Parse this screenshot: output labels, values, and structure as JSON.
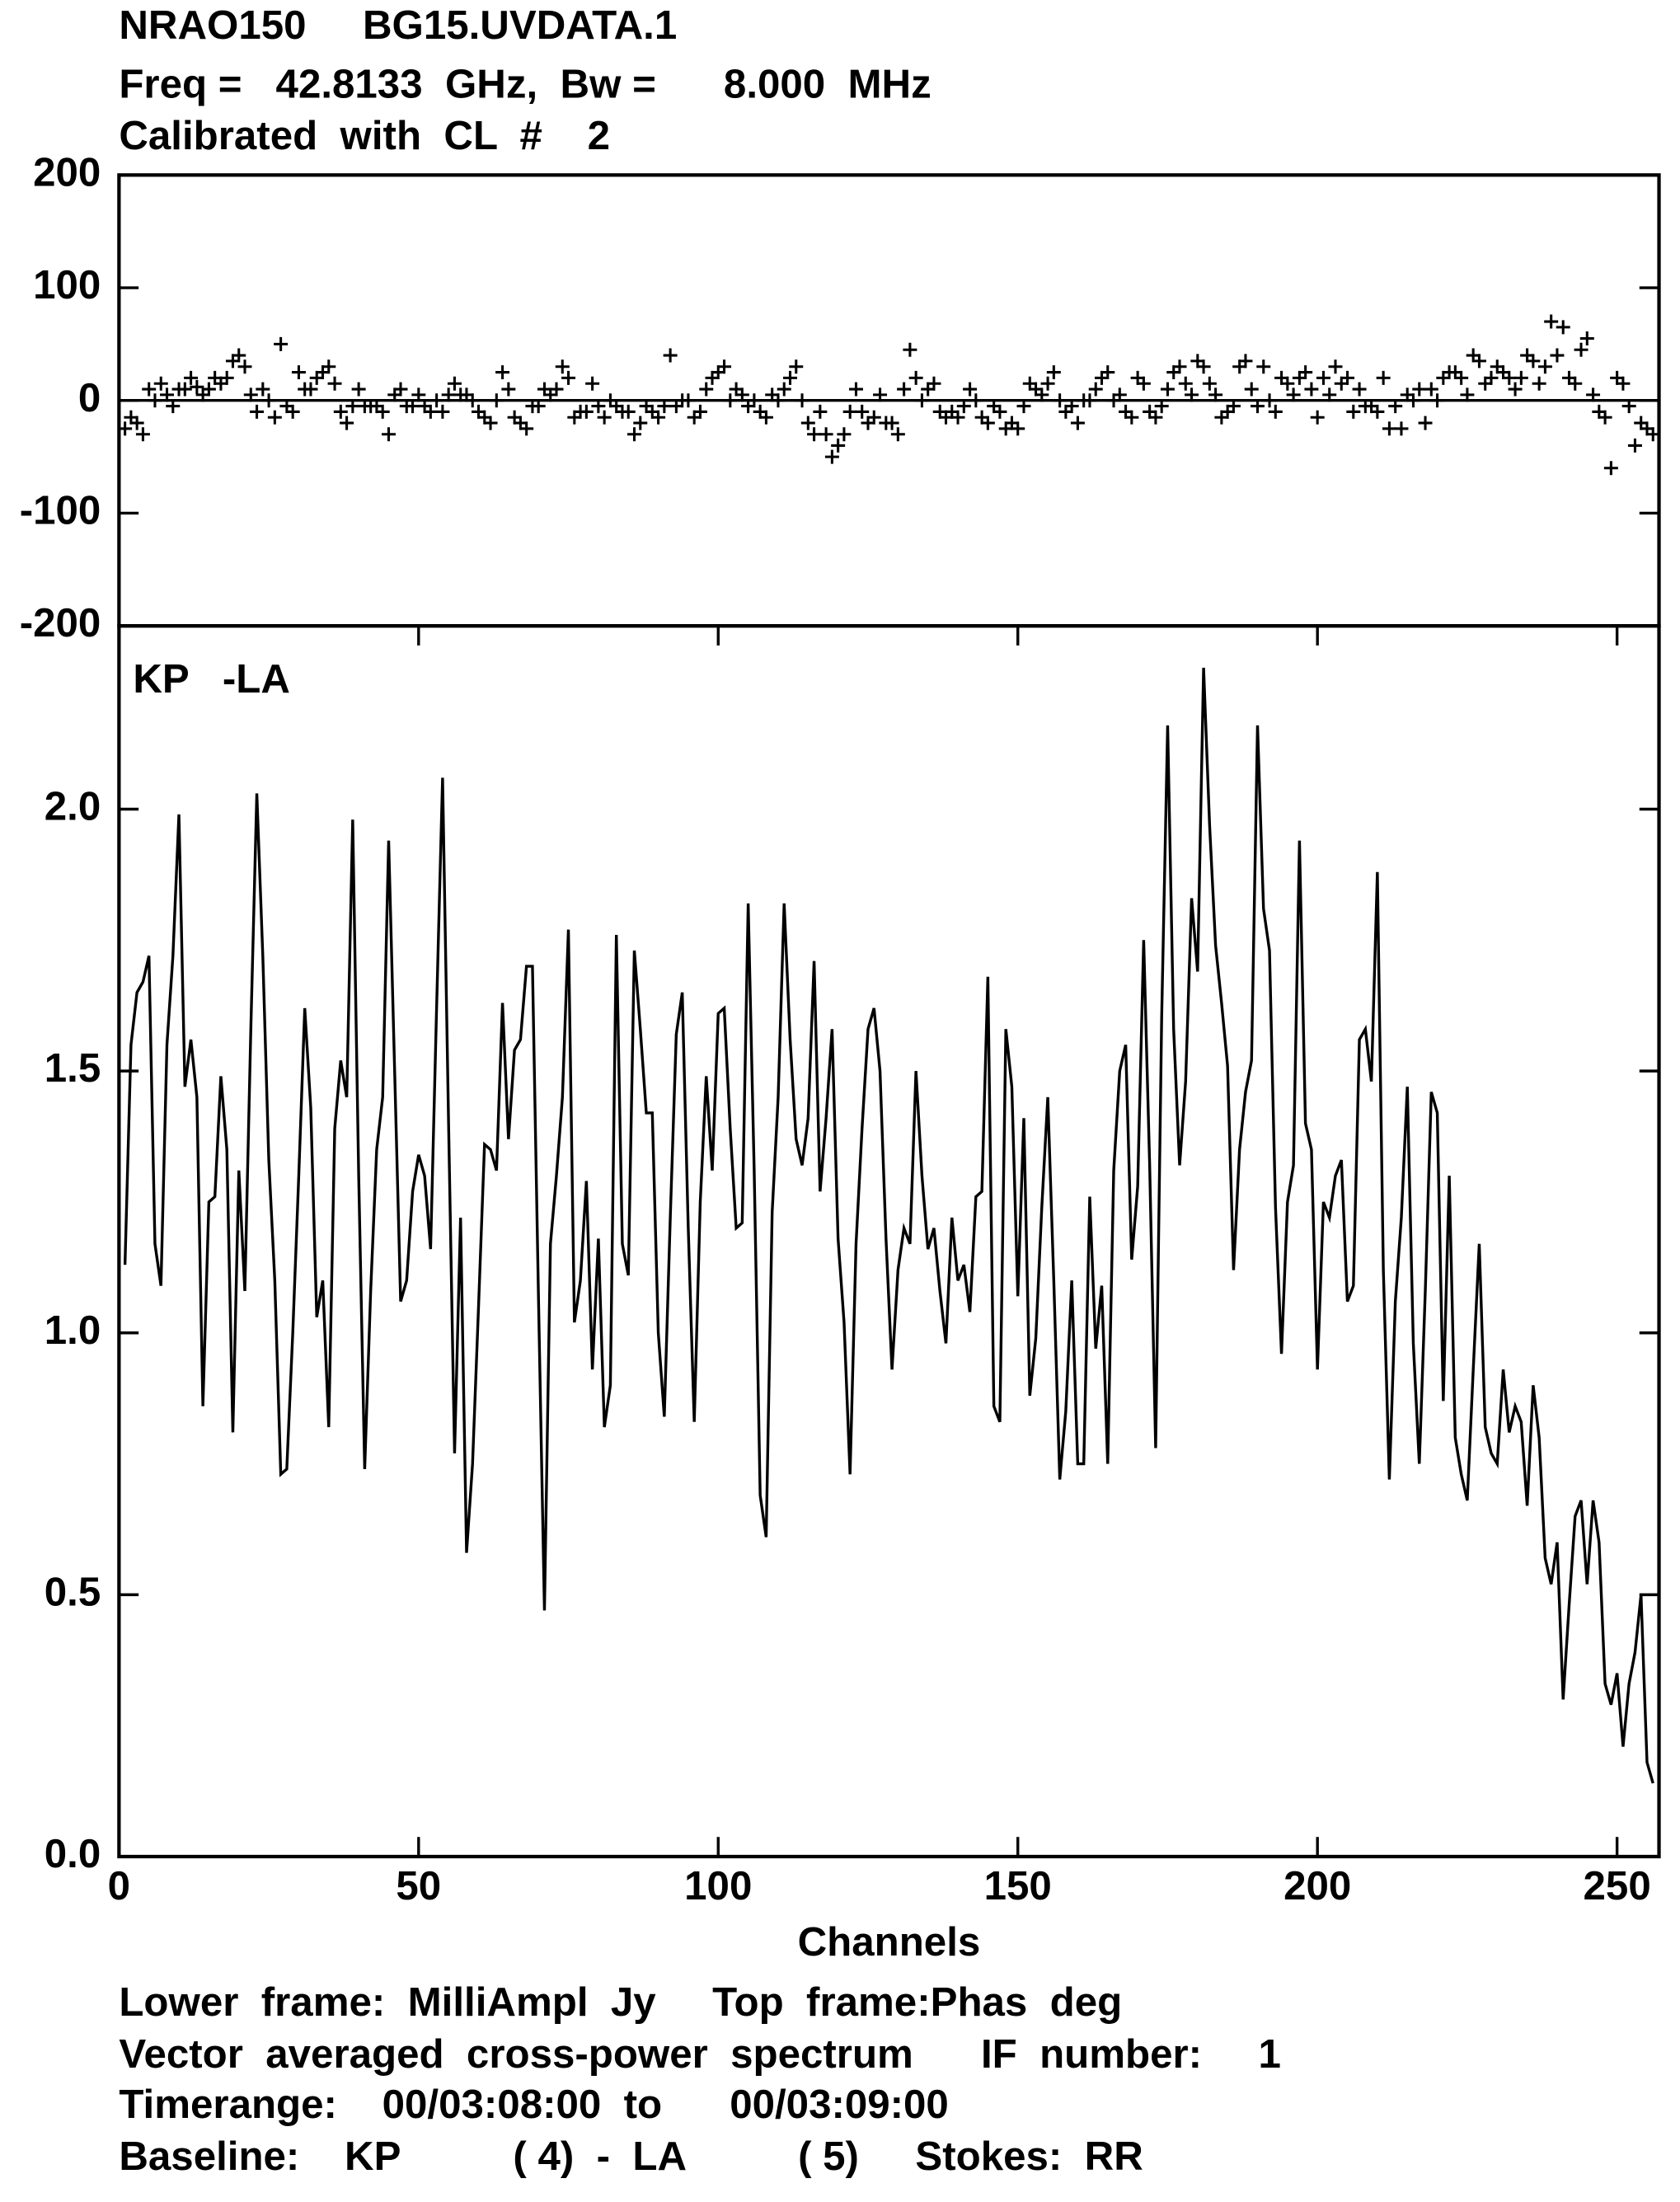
{
  "header": {
    "lines": [
      "NRAO150     BG15.UVDATA.1",
      "Freq =   42.8133  GHz,  Bw =      8.000  MHz",
      "Calibrated  with  CL  #    2"
    ]
  },
  "footer": {
    "lines": [
      "Lower  frame:  MilliAmpl  Jy     Top  frame:Phas  deg",
      "Vector  averaged  cross-power  spectrum      IF  number:     1",
      "Timerange:    00/03:08:00  to      00/03:09:00",
      "Baseline:    KP          ( 4)  -  LA          ( 5)     Stokes:  RR"
    ]
  },
  "chart_data": [
    {
      "type": "scatter",
      "color": "#000000",
      "xlim": [
        0,
        257
      ],
      "ylim": [
        -200,
        200
      ],
      "yticks": [
        200,
        100,
        0,
        -100,
        -200
      ],
      "x": [
        1,
        2,
        3,
        4,
        5,
        6,
        7,
        8,
        9,
        10,
        11,
        12,
        13,
        14,
        15,
        16,
        17,
        18,
        19,
        20,
        21,
        22,
        23,
        24,
        25,
        26,
        27,
        28,
        29,
        30,
        31,
        32,
        33,
        34,
        35,
        36,
        37,
        38,
        39,
        40,
        41,
        42,
        43,
        44,
        45,
        46,
        47,
        48,
        49,
        50,
        51,
        52,
        53,
        54,
        55,
        56,
        57,
        58,
        59,
        60,
        61,
        62,
        63,
        64,
        65,
        66,
        67,
        68,
        69,
        70,
        71,
        72,
        73,
        74,
        75,
        76,
        77,
        78,
        79,
        80,
        81,
        82,
        83,
        84,
        85,
        86,
        87,
        88,
        89,
        90,
        91,
        92,
        93,
        94,
        95,
        96,
        97,
        98,
        99,
        100,
        101,
        102,
        103,
        104,
        105,
        106,
        107,
        108,
        109,
        110,
        111,
        112,
        113,
        114,
        115,
        116,
        117,
        118,
        119,
        120,
        121,
        122,
        123,
        124,
        125,
        126,
        127,
        128,
        129,
        130,
        131,
        132,
        133,
        134,
        135,
        136,
        137,
        138,
        139,
        140,
        141,
        142,
        143,
        144,
        145,
        146,
        147,
        148,
        149,
        150,
        151,
        152,
        153,
        154,
        155,
        156,
        157,
        158,
        159,
        160,
        161,
        162,
        163,
        164,
        165,
        166,
        167,
        168,
        169,
        170,
        171,
        172,
        173,
        174,
        175,
        176,
        177,
        178,
        179,
        180,
        181,
        182,
        183,
        184,
        185,
        186,
        187,
        188,
        189,
        190,
        191,
        192,
        193,
        194,
        195,
        196,
        197,
        198,
        199,
        200,
        201,
        202,
        203,
        204,
        205,
        206,
        207,
        208,
        209,
        210,
        211,
        212,
        213,
        214,
        215,
        216,
        217,
        218,
        219,
        220,
        221,
        222,
        223,
        224,
        225,
        226,
        227,
        228,
        229,
        230,
        231,
        232,
        233,
        234,
        235,
        236,
        237,
        238,
        239,
        240,
        241,
        242,
        243,
        244,
        245,
        246,
        247,
        248,
        249,
        250,
        251,
        252,
        253,
        254,
        255,
        256
      ],
      "values": [
        -25,
        -15,
        -20,
        -30,
        10,
        0,
        15,
        5,
        -5,
        10,
        10,
        20,
        12,
        5,
        10,
        20,
        15,
        20,
        35,
        40,
        30,
        5,
        -10,
        10,
        0,
        -15,
        50,
        -5,
        -10,
        25,
        10,
        10,
        20,
        25,
        30,
        15,
        -10,
        -20,
        -5,
        10,
        -5,
        -5,
        -5,
        -10,
        -30,
        5,
        10,
        -5,
        -5,
        5,
        -5,
        -10,
        0,
        -10,
        5,
        15,
        5,
        5,
        0,
        -10,
        -15,
        -20,
        0,
        25,
        10,
        -15,
        -20,
        -25,
        -5,
        -5,
        10,
        5,
        10,
        30,
        20,
        -15,
        -10,
        -10,
        15,
        -5,
        -15,
        0,
        -5,
        -10,
        -10,
        -30,
        -20,
        -5,
        -10,
        -15,
        -5,
        40,
        -5,
        0,
        0,
        -15,
        -10,
        10,
        20,
        25,
        30,
        0,
        10,
        5,
        -5,
        0,
        -10,
        -15,
        5,
        0,
        10,
        20,
        30,
        0,
        -20,
        -30,
        -10,
        -30,
        -50,
        -40,
        -30,
        -10,
        10,
        -10,
        -20,
        -15,
        5,
        -20,
        -20,
        -30,
        10,
        45,
        20,
        0,
        10,
        15,
        -10,
        -15,
        -10,
        -15,
        -5,
        10,
        0,
        -15,
        -20,
        -5,
        -10,
        -25,
        -20,
        -25,
        -5,
        15,
        10,
        5,
        15,
        25,
        0,
        -10,
        -5,
        -20,
        0,
        0,
        10,
        20,
        25,
        0,
        5,
        -10,
        -15,
        20,
        15,
        -10,
        -15,
        -5,
        10,
        25,
        30,
        15,
        5,
        35,
        30,
        15,
        5,
        -15,
        -10,
        -5,
        30,
        35,
        10,
        -5,
        30,
        0,
        -10,
        20,
        15,
        5,
        20,
        25,
        10,
        -15,
        20,
        5,
        30,
        15,
        20,
        -10,
        10,
        -5,
        -5,
        -10,
        20,
        -25,
        -5,
        -25,
        5,
        0,
        10,
        -20,
        10,
        0,
        20,
        25,
        25,
        20,
        5,
        40,
        35,
        15,
        20,
        30,
        25,
        20,
        10,
        20,
        40,
        35,
        15,
        30,
        70,
        40,
        65,
        20,
        15,
        45,
        55,
        5,
        -10,
        -15,
        -60,
        20,
        15,
        -5,
        -40,
        -20,
        -25,
        -30
      ]
    },
    {
      "type": "line",
      "color": "#000000",
      "xlabel": "Channels",
      "annotation": "KP   -LA",
      "xlim": [
        0,
        257
      ],
      "xticks": [
        0,
        50,
        100,
        150,
        200,
        250
      ],
      "ylim": [
        0,
        2.35
      ],
      "yticks": [
        {
          "value": 0,
          "label": "0.0"
        },
        0.5,
        {
          "value": 1,
          "label": "1.0"
        },
        1.5,
        {
          "value": 2,
          "label": "2.0"
        }
      ],
      "x": [
        1,
        2,
        3,
        4,
        5,
        6,
        7,
        8,
        9,
        10,
        11,
        12,
        13,
        14,
        15,
        16,
        17,
        18,
        19,
        20,
        21,
        22,
        23,
        24,
        25,
        26,
        27,
        28,
        29,
        30,
        31,
        32,
        33,
        34,
        35,
        36,
        37,
        38,
        39,
        40,
        41,
        42,
        43,
        44,
        45,
        46,
        47,
        48,
        49,
        50,
        51,
        52,
        53,
        54,
        55,
        56,
        57,
        58,
        59,
        60,
        61,
        62,
        63,
        64,
        65,
        66,
        67,
        68,
        69,
        70,
        71,
        72,
        73,
        74,
        75,
        76,
        77,
        78,
        79,
        80,
        81,
        82,
        83,
        84,
        85,
        86,
        87,
        88,
        89,
        90,
        91,
        92,
        93,
        94,
        95,
        96,
        97,
        98,
        99,
        100,
        101,
        102,
        103,
        104,
        105,
        106,
        107,
        108,
        109,
        110,
        111,
        112,
        113,
        114,
        115,
        116,
        117,
        118,
        119,
        120,
        121,
        122,
        123,
        124,
        125,
        126,
        127,
        128,
        129,
        130,
        131,
        132,
        133,
        134,
        135,
        136,
        137,
        138,
        139,
        140,
        141,
        142,
        143,
        144,
        145,
        146,
        147,
        148,
        149,
        150,
        151,
        152,
        153,
        154,
        155,
        156,
        157,
        158,
        159,
        160,
        161,
        162,
        163,
        164,
        165,
        166,
        167,
        168,
        169,
        170,
        171,
        172,
        173,
        174,
        175,
        176,
        177,
        178,
        179,
        180,
        181,
        182,
        183,
        184,
        185,
        186,
        187,
        188,
        189,
        190,
        191,
        192,
        193,
        194,
        195,
        196,
        197,
        198,
        199,
        200,
        201,
        202,
        203,
        204,
        205,
        206,
        207,
        208,
        209,
        210,
        211,
        212,
        213,
        214,
        215,
        216,
        217,
        218,
        219,
        220,
        221,
        222,
        223,
        224,
        225,
        226,
        227,
        228,
        229,
        230,
        231,
        232,
        233,
        234,
        235,
        236,
        237,
        238,
        239,
        240,
        241,
        242,
        243,
        244,
        245,
        246,
        247,
        248,
        249,
        250,
        251,
        252,
        253,
        254,
        255,
        256
      ],
      "values": [
        1.13,
        1.55,
        1.65,
        1.67,
        1.72,
        1.17,
        1.09,
        1.55,
        1.72,
        1.99,
        1.47,
        1.56,
        1.45,
        0.86,
        1.25,
        1.26,
        1.49,
        1.35,
        0.81,
        1.31,
        1.08,
        1.58,
        2.03,
        1.72,
        1.33,
        1.1,
        0.73,
        0.74,
        1.0,
        1.3,
        1.62,
        1.43,
        1.03,
        1.1,
        0.82,
        1.39,
        1.52,
        1.45,
        1.98,
        1.3,
        0.74,
        1.08,
        1.35,
        1.45,
        1.94,
        1.5,
        1.06,
        1.1,
        1.27,
        1.34,
        1.3,
        1.16,
        1.62,
        2.06,
        1.4,
        0.77,
        1.22,
        0.58,
        0.75,
        1.05,
        1.36,
        1.35,
        1.31,
        1.63,
        1.37,
        1.54,
        1.56,
        1.7,
        1.7,
        1.07,
        0.47,
        1.17,
        1.3,
        1.45,
        1.77,
        1.02,
        1.1,
        1.29,
        0.93,
        1.18,
        0.82,
        0.9,
        1.76,
        1.17,
        1.11,
        1.73,
        1.58,
        1.42,
        1.42,
        1.0,
        0.84,
        1.22,
        1.57,
        1.65,
        1.2,
        0.83,
        1.25,
        1.49,
        1.31,
        1.61,
        1.62,
        1.39,
        1.2,
        1.21,
        1.82,
        1.31,
        0.69,
        0.61,
        1.23,
        1.45,
        1.82,
        1.56,
        1.37,
        1.32,
        1.41,
        1.71,
        1.27,
        1.41,
        1.58,
        1.18,
        1.02,
        0.73,
        1.17,
        1.39,
        1.58,
        1.62,
        1.5,
        1.18,
        0.93,
        1.12,
        1.2,
        1.17,
        1.5,
        1.3,
        1.16,
        1.2,
        1.08,
        0.98,
        1.22,
        1.1,
        1.13,
        1.04,
        1.26,
        1.27,
        1.68,
        0.86,
        0.83,
        1.58,
        1.47,
        1.07,
        1.41,
        0.88,
        0.99,
        1.24,
        1.45,
        1.1,
        0.72,
        0.85,
        1.1,
        0.75,
        0.75,
        1.26,
        0.97,
        1.09,
        0.75,
        1.31,
        1.5,
        1.55,
        1.14,
        1.28,
        1.75,
        1.32,
        0.78,
        1.6,
        2.16,
        1.58,
        1.32,
        1.48,
        1.83,
        1.69,
        2.27,
        1.97,
        1.74,
        1.63,
        1.51,
        1.12,
        1.35,
        1.46,
        1.52,
        2.16,
        1.81,
        1.73,
        1.24,
        0.96,
        1.25,
        1.32,
        1.94,
        1.4,
        1.35,
        0.93,
        1.25,
        1.22,
        1.3,
        1.33,
        1.06,
        1.09,
        1.56,
        1.58,
        1.48,
        1.88,
        1.12,
        0.72,
        1.06,
        1.22,
        1.47,
        0.98,
        0.75,
        1.08,
        1.46,
        1.42,
        0.87,
        1.3,
        0.8,
        0.73,
        0.68,
        0.93,
        1.17,
        0.82,
        0.77,
        0.75,
        0.93,
        0.81,
        0.86,
        0.83,
        0.67,
        0.9,
        0.8,
        0.57,
        0.52,
        0.6,
        0.3,
        0.48,
        0.65,
        0.68,
        0.52,
        0.68,
        0.6,
        0.33,
        0.29,
        0.35,
        0.21,
        0.33,
        0.39,
        0.5,
        0.18,
        0.14
      ]
    }
  ]
}
